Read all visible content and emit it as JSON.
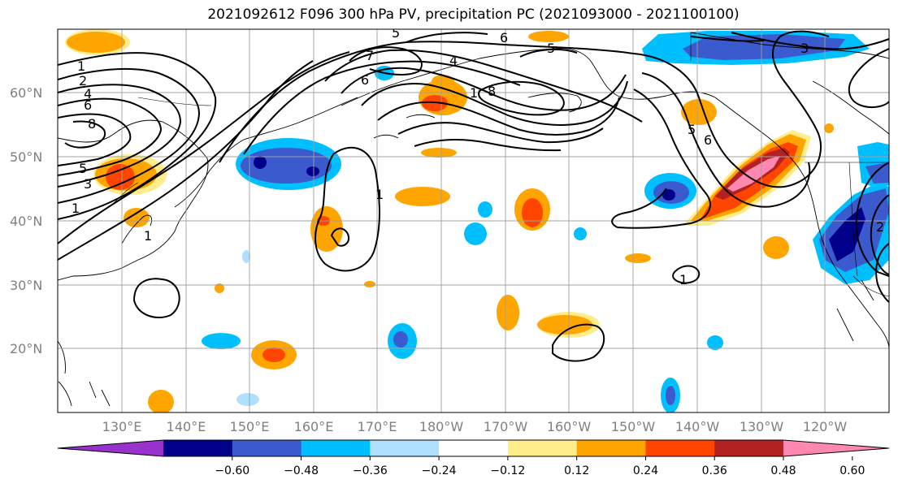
{
  "title": "2021092612 F096 300 hPa PV, precipitation PC (2021093000 - 2021100100)",
  "lat_labels": [
    "60°N",
    "50°N",
    "40°N",
    "30°N",
    "20°N"
  ],
  "lon_labels": [
    "130°E",
    "140°E",
    "150°E",
    "160°E",
    "170°E",
    "180°W",
    "170°W",
    "160°W",
    "150°W",
    "140°W",
    "130°W",
    "120°W"
  ],
  "colorbar": {
    "ticks": [
      "−0.60",
      "−0.48",
      "−0.36",
      "−0.24",
      "−0.12",
      "0.12",
      "0.24",
      "0.36",
      "0.48",
      "0.60"
    ],
    "colors": [
      "#9932cc",
      "#00008b",
      "#3a5acd",
      "#00bfff",
      "#b0e0ff",
      "#ffffff",
      "#ffec8b",
      "#ffa500",
      "#ff4500",
      "#b22222",
      "#ff88b0"
    ]
  },
  "contour_labels": [
    "1",
    "2",
    "4",
    "6",
    "8",
    "5",
    "3",
    "1",
    "5",
    "7",
    "6",
    "6",
    "5",
    "4",
    "8",
    "1",
    "6",
    "5",
    "1",
    "1",
    "1",
    "2",
    "3"
  ]
}
